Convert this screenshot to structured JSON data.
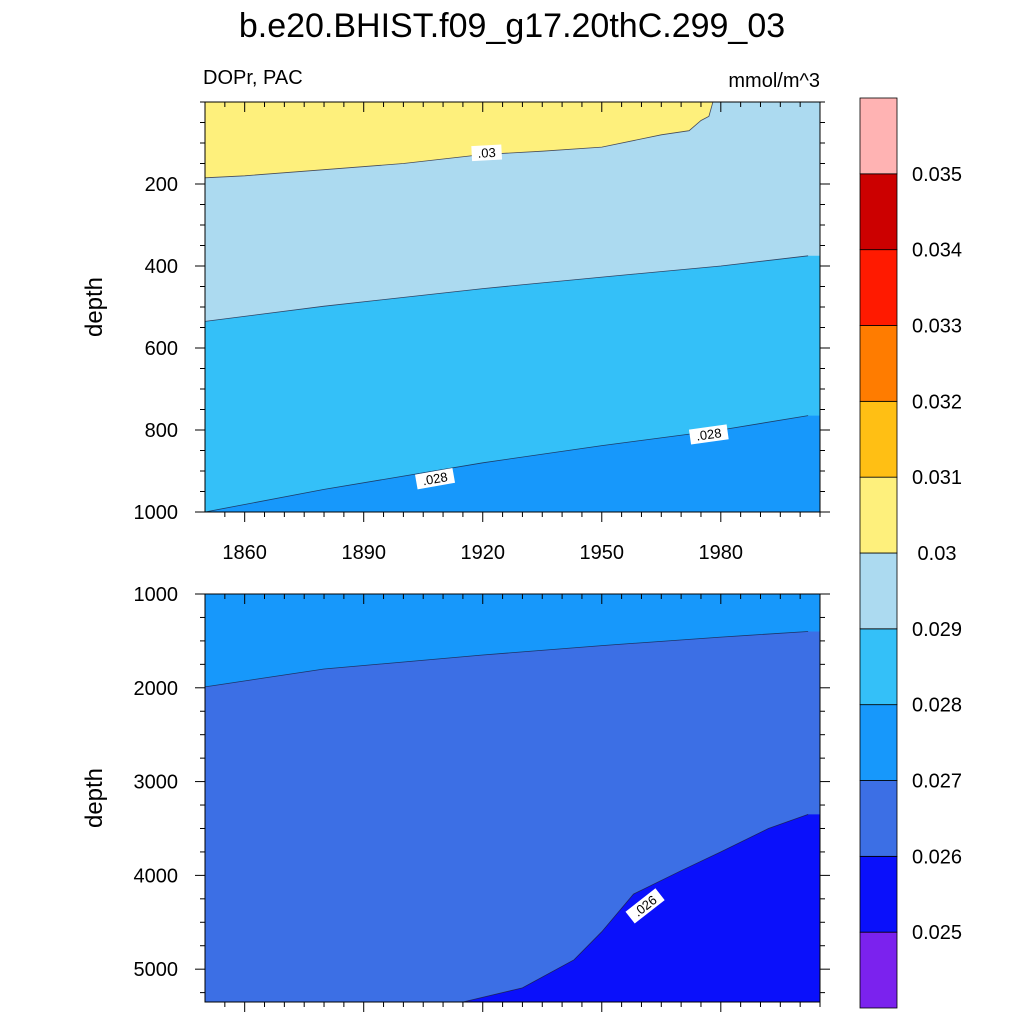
{
  "chart_data": {
    "type": "contour",
    "title": "b.e20.BHIST.f09_g17.20thC.299_03",
    "variable_label": "DOPr, PAC",
    "units_label": "mmol/m^3",
    "x": {
      "label": "",
      "range": [
        1850,
        2005
      ],
      "major_ticks": [
        1860,
        1890,
        1920,
        1950,
        1980
      ],
      "tick_labels": [
        "1860",
        "1890",
        "1920",
        "1950",
        "1980"
      ]
    },
    "colorbar": {
      "levels": [
        0.025,
        0.026,
        0.027,
        0.028,
        0.029,
        0.03,
        0.031,
        0.032,
        0.033,
        0.034,
        0.035
      ],
      "labels": [
        "0.025",
        "0.026",
        "0.027",
        "0.028",
        "0.029",
        "0.03",
        "0.031",
        "0.032",
        "0.033",
        "0.034",
        "0.035"
      ],
      "colors": [
        "#7b22ee",
        "#0a10fb",
        "#3c6fe5",
        "#1798fb",
        "#34c0f8",
        "#acdaf0",
        "#fef07c",
        "#ffbf14",
        "#ff7c00",
        "#ff1a00",
        "#cc0000",
        "#ffb3b3"
      ]
    },
    "panels": [
      {
        "name": "upper",
        "ylabel": "depth",
        "ylim": [
          0,
          1000
        ],
        "y_major_ticks": [
          200,
          400,
          600,
          800,
          1000
        ],
        "y_tick_labels": [
          "200",
          "400",
          "600",
          "800",
          "1000"
        ],
        "background_color": "#acdaf0",
        "fills": [
          {
            "level_range": "0.030-0.031",
            "color": "#fef07c",
            "boundary": [
              [
                1850,
                185
              ],
              [
                1860,
                180
              ],
              [
                1880,
                165
              ],
              [
                1900,
                150
              ],
              [
                1920,
                128
              ],
              [
                1935,
                120
              ],
              [
                1950,
                110
              ],
              [
                1965,
                80
              ],
              [
                1972,
                70
              ],
              [
                1975,
                45
              ],
              [
                1977,
                35
              ],
              [
                1978,
                0
              ]
            ]
          },
          {
            "level_range": "0.028-0.029",
            "color": "#34c0f8",
            "boundary": [
              [
                1850,
                535
              ],
              [
                1880,
                498
              ],
              [
                1920,
                455
              ],
              [
                1950,
                427
              ],
              [
                1980,
                400
              ],
              [
                2002,
                375
              ]
            ]
          },
          {
            "level_range": "0.027-0.028",
            "color": "#1798fb",
            "boundary": [
              [
                1850,
                1000
              ],
              [
                1880,
                945
              ],
              [
                1920,
                880
              ],
              [
                1950,
                838
              ],
              [
                1980,
                800
              ],
              [
                2002,
                765
              ]
            ]
          }
        ],
        "contour_labels": [
          {
            "text": ".03",
            "x": 1921,
            "y": 125,
            "angle": -3
          },
          {
            "text": ".028",
            "x": 1908,
            "y": 920,
            "angle": -10
          },
          {
            "text": ".028",
            "x": 1977,
            "y": 812,
            "angle": -8
          }
        ]
      },
      {
        "name": "lower",
        "ylabel": "depth",
        "ylim": [
          1000,
          5350
        ],
        "y_major_ticks": [
          1000,
          2000,
          3000,
          4000,
          5000
        ],
        "y_tick_labels": [
          "1000",
          "2000",
          "3000",
          "4000",
          "5000"
        ],
        "background_color": "#1798fb",
        "fills": [
          {
            "level_range": "0.026-0.027",
            "color": "#3c6fe5",
            "boundary": [
              [
                1850,
                1990
              ],
              [
                1880,
                1800
              ],
              [
                1920,
                1650
              ],
              [
                1950,
                1550
              ],
              [
                1980,
                1460
              ],
              [
                2002,
                1400
              ]
            ]
          },
          {
            "level_range": "0.025-0.026",
            "color": "#0a10fb",
            "boundary": [
              [
                1915,
                5350
              ],
              [
                1930,
                5200
              ],
              [
                1943,
                4900
              ],
              [
                1950,
                4600
              ],
              [
                1958,
                4200
              ],
              [
                1970,
                3950
              ],
              [
                1980,
                3750
              ],
              [
                1992,
                3500
              ],
              [
                2002,
                3350
              ]
            ]
          }
        ],
        "contour_labels": [
          {
            "text": ".026",
            "x": 1961,
            "y": 4330,
            "angle": -38
          }
        ]
      }
    ]
  }
}
